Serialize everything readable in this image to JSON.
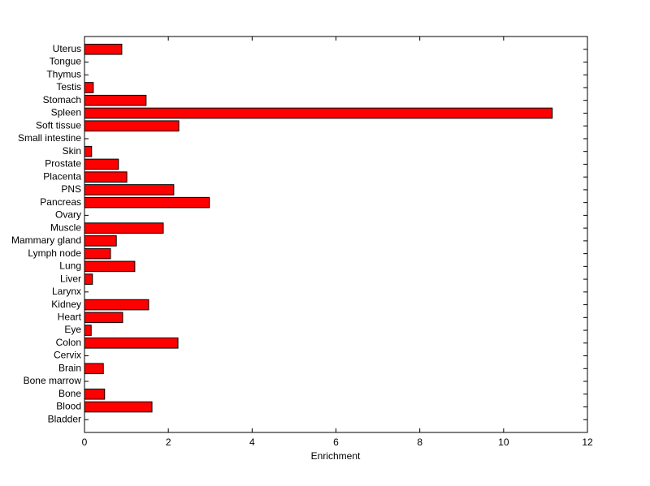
{
  "chart_data": {
    "type": "barh",
    "xlabel": "Enrichment",
    "categories": [
      "Bladder",
      "Blood",
      "Bone",
      "Bone marrow",
      "Brain",
      "Cervix",
      "Colon",
      "Eye",
      "Heart",
      "Kidney",
      "Larynx",
      "Liver",
      "Lung",
      "Lymph node",
      "Mammary gland",
      "Muscle",
      "Ovary",
      "Pancreas",
      "PNS",
      "Placenta",
      "Prostate",
      "Skin",
      "Small intestine",
      "Soft tissue",
      "Spleen",
      "Stomach",
      "Testis",
      "Thymus",
      "Tongue",
      "Uterus"
    ],
    "values": [
      0,
      1.61,
      0.48,
      0,
      0.45,
      0,
      2.23,
      0.16,
      0.91,
      1.53,
      0,
      0.19,
      1.2,
      0.62,
      0.76,
      1.88,
      0,
      2.98,
      2.13,
      1.01,
      0.81,
      0.17,
      0,
      2.25,
      11.16,
      1.47,
      0.21,
      0,
      0,
      0.89
    ],
    "color": "#ff0000",
    "xlim": [
      0,
      12
    ],
    "xticks": [
      0,
      2,
      4,
      6,
      8,
      10,
      12
    ]
  }
}
